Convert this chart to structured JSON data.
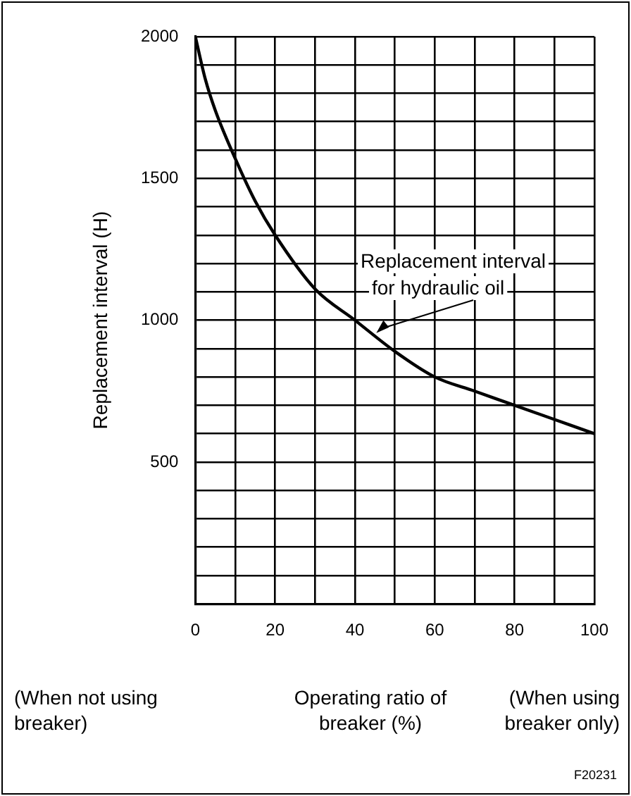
{
  "chart_data": {
    "type": "line",
    "xlabel": "Operating ratio of breaker (%)",
    "ylabel": "Replacement interval (H)",
    "x": [
      0,
      2.5,
      5,
      10,
      15,
      20,
      30,
      40,
      50,
      60,
      70,
      80,
      90,
      100
    ],
    "series": [
      {
        "color": "#000000",
        "values": [
          2000,
          1850,
          1740,
          1570,
          1420,
          1300,
          1110,
          1000,
          890,
          800,
          750,
          700,
          650,
          600
        ]
      }
    ],
    "xlim": [
      0,
      100
    ],
    "xticks": [
      0,
      {
        "value": 10,
        "label": null
      },
      20,
      {
        "value": 30,
        "label": null
      },
      40,
      {
        "value": 50,
        "label": null
      },
      60,
      {
        "value": 70,
        "label": null
      },
      80,
      {
        "value": 90,
        "label": null
      },
      100
    ],
    "ylim": [
      0,
      2000
    ],
    "yticks": [
      {
        "value": 0,
        "label": null
      },
      {
        "value": 100,
        "label": null
      },
      {
        "value": 200,
        "label": null
      },
      {
        "value": 300,
        "label": null
      },
      {
        "value": 400,
        "label": null
      },
      500,
      {
        "value": 600,
        "label": null
      },
      {
        "value": 700,
        "label": null
      },
      {
        "value": 800,
        "label": null
      },
      {
        "value": 900,
        "label": null
      },
      1000,
      {
        "value": 1100,
        "label": null
      },
      {
        "value": 1200,
        "label": null
      },
      {
        "value": 1300,
        "label": null
      },
      {
        "value": 1400,
        "label": null
      },
      1500,
      {
        "value": 1600,
        "label": null
      },
      {
        "value": 1700,
        "label": null
      },
      {
        "value": 1800,
        "label": null
      },
      {
        "value": 1900,
        "label": null
      },
      2000
    ],
    "grid": true,
    "legend": false,
    "marker": "none",
    "line_style": "solid",
    "annotations": [
      {
        "text": "Replacement interval for hydraulic oil",
        "x": 45,
        "y": 950
      },
      "(When not using breaker)",
      "(When using breaker only)",
      "F20231"
    ]
  }
}
